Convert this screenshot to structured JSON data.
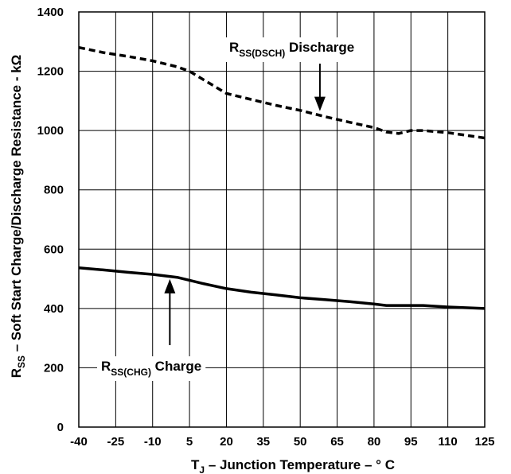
{
  "chart_data": {
    "type": "line",
    "xlabel": {
      "prefix": "T",
      "sub": "J",
      "rest": " – Junction Temperature – ° C"
    },
    "ylabel": {
      "prefix": "R",
      "sub": "SS",
      "rest": " – Soft Start Charge/Discharge Resistance - kΩ"
    },
    "xlim": [
      -40,
      125
    ],
    "ylim": [
      0,
      1400
    ],
    "xticks": [
      "-40",
      "-25",
      "-10",
      "5",
      "20",
      "35",
      "50",
      "65",
      "80",
      "95",
      "110",
      "125"
    ],
    "yticks": [
      "0",
      "200",
      "400",
      "600",
      "800",
      "1000",
      "1200",
      "1400"
    ],
    "grid": true,
    "series": [
      {
        "name": "R_SS(DSCH) Discharge",
        "style": "dashed",
        "x": [
          -40,
          -30,
          -20,
          -10,
          0,
          5,
          10,
          15,
          20,
          30,
          40,
          50,
          60,
          70,
          80,
          85,
          90,
          95,
          100,
          110,
          125
        ],
        "y": [
          1280,
          1263,
          1250,
          1235,
          1215,
          1200,
          1175,
          1150,
          1125,
          1105,
          1085,
          1068,
          1047,
          1028,
          1010,
          995,
          990,
          1000,
          1000,
          993,
          975
        ]
      },
      {
        "name": "R_SS(CHG) Charge",
        "style": "solid",
        "x": [
          -40,
          -30,
          -20,
          -10,
          0,
          5,
          10,
          20,
          30,
          40,
          50,
          60,
          70,
          80,
          85,
          90,
          100,
          110,
          125
        ],
        "y": [
          537,
          530,
          522,
          515,
          505,
          495,
          485,
          467,
          455,
          446,
          436,
          430,
          423,
          415,
          410,
          410,
          410,
          405,
          400
        ]
      }
    ],
    "annotations": [
      {
        "main": "R",
        "sub": "SS(DSCH)",
        "rest": "  Discharge",
        "x": 58,
        "y": 1055
      },
      {
        "main": "R",
        "sub": "SS(CHG)",
        "rest": "  Charge",
        "x": -3,
        "y": 510
      }
    ]
  }
}
